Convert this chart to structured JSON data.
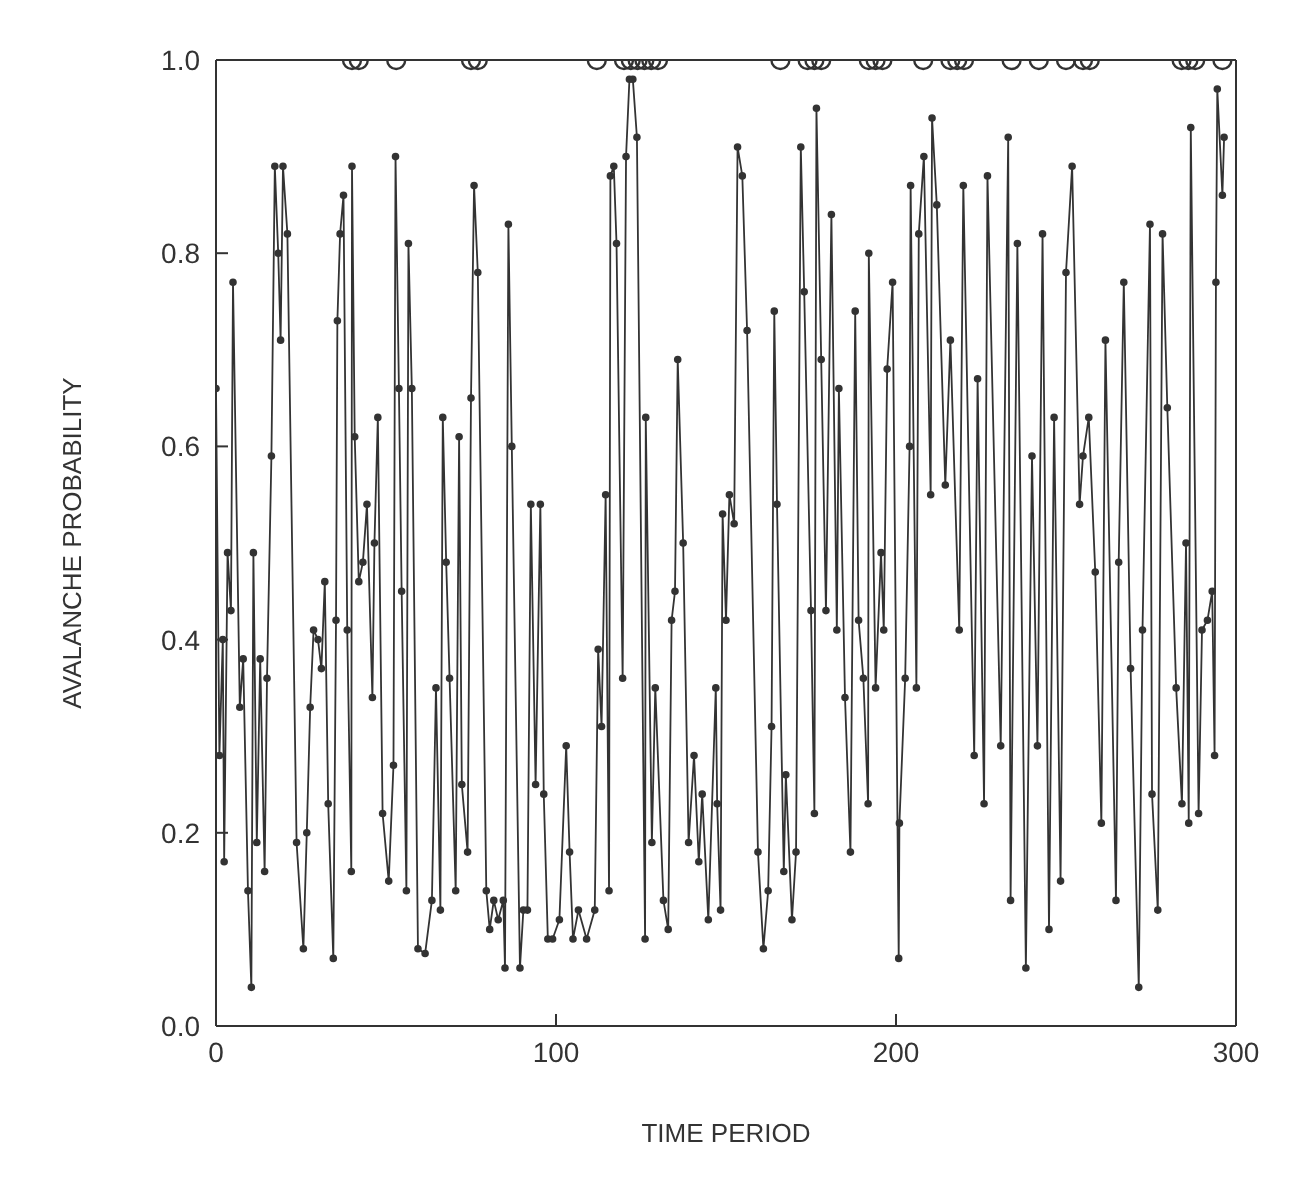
{
  "chart_data": {
    "type": "line",
    "xlabel": "TIME PERIOD",
    "ylabel": "AVALANCHE PROBABILITY",
    "xlim": [
      0,
      300
    ],
    "ylim": [
      0,
      1
    ],
    "xticks": [
      0,
      100,
      200,
      300
    ],
    "yticks": [
      {
        "value": 0,
        "label": "0.0"
      },
      {
        "value": 0.2,
        "label": "0.2"
      },
      {
        "value": 0.4,
        "label": "0.4"
      },
      {
        "value": 0.6,
        "label": "0.6"
      },
      {
        "value": 0.8,
        "label": "0.8"
      },
      {
        "value": 1,
        "label": "1.0"
      }
    ],
    "grid": false,
    "line_style": "solid",
    "series": [
      {
        "color": "#333333",
        "marker": "circle",
        "x": [
          0,
          1,
          2,
          2.4,
          3.4,
          4.4,
          5,
          7,
          8,
          9.4,
          10.4,
          11,
          12,
          13,
          14.3,
          15,
          16.3,
          17.3,
          18.3,
          19,
          19.7,
          21,
          23.7,
          25.7,
          26.7,
          27.7,
          28.7,
          30,
          31,
          32,
          33,
          34.5,
          35.3,
          35.7,
          36.5,
          37.5,
          38.6,
          39.8,
          40,
          40.8,
          42,
          43.2,
          44.4,
          46,
          46.6,
          47.6,
          49,
          50.8,
          52.2,
          52.8,
          53.8,
          54.6,
          56,
          56.6,
          57.6,
          59.4,
          61.5,
          63.5,
          64.7,
          66,
          66.7,
          67.7,
          68.7,
          70.5,
          71.5,
          72.3,
          74,
          75,
          75.9,
          77,
          79.5,
          80.5,
          81.7,
          83,
          84.5,
          85,
          86,
          87,
          89.4,
          90.4,
          91.6,
          92.6,
          94,
          95.4,
          96.4,
          97.6,
          99,
          101,
          103,
          104,
          105,
          106.6,
          109,
          111.4,
          112.4,
          113.4,
          114.6,
          115.6,
          116,
          117,
          117.8,
          119.6,
          120.6,
          121.6,
          122.6,
          123.8,
          126.2,
          126.4,
          128.2,
          129.2,
          131.6,
          133,
          134,
          135,
          135.8,
          137.4,
          139,
          140.6,
          142,
          143,
          144.8,
          147,
          147.4,
          148.4,
          149,
          150,
          151,
          152.4,
          153.4,
          154.8,
          156.2,
          159.4,
          161,
          162.4,
          163.4,
          164.2,
          165,
          167,
          167.6,
          169.4,
          170.6,
          172,
          173,
          175,
          176,
          176.6,
          178,
          179.4,
          181,
          182.6,
          183.2,
          185,
          186.6,
          188,
          189,
          190.4,
          191.8,
          192,
          194,
          195.6,
          196.4,
          197.4,
          199,
          200.8,
          201,
          202.7,
          204,
          204.3,
          206,
          206.7,
          208.2,
          210.2,
          210.6,
          212,
          214.5,
          216,
          218.6,
          219.8,
          223,
          224,
          225.9,
          226.9,
          230.8,
          233,
          233.7,
          235.7,
          238.2,
          240,
          241.6,
          243.1,
          245,
          246.5,
          248.4,
          250,
          251.8,
          254,
          255,
          256.7,
          258.6,
          260.4,
          261.6,
          264.7,
          265.5,
          267,
          269,
          271.4,
          272.5,
          274.7,
          275.3,
          277,
          278.4,
          279.8,
          282.4,
          284.1,
          285.3,
          286.1,
          286.7,
          289,
          290,
          291.6,
          293,
          293.7,
          294.1,
          294.5,
          296,
          296.5
        ],
        "values": [
          0.66,
          0.28,
          0.4,
          0.17,
          0.49,
          0.43,
          0.77,
          0.33,
          0.38,
          0.14,
          0.04,
          0.49,
          0.19,
          0.38,
          0.16,
          0.36,
          0.59,
          0.89,
          0.8,
          0.71,
          0.89,
          0.82,
          0.19,
          0.08,
          0.2,
          0.33,
          0.41,
          0.4,
          0.37,
          0.46,
          0.23,
          0.07,
          0.42,
          0.73,
          0.82,
          0.86,
          0.41,
          0.16,
          0.89,
          0.61,
          0.46,
          0.48,
          0.54,
          0.34,
          0.5,
          0.63,
          0.22,
          0.15,
          0.27,
          0.9,
          0.66,
          0.45,
          0.14,
          0.81,
          0.66,
          0.08,
          0.075,
          0.13,
          0.35,
          0.12,
          0.63,
          0.48,
          0.36,
          0.14,
          0.61,
          0.25,
          0.18,
          0.65,
          0.87,
          0.78,
          0.14,
          0.1,
          0.13,
          0.11,
          0.13,
          0.06,
          0.83,
          0.6,
          0.06,
          0.12,
          0.12,
          0.54,
          0.25,
          0.54,
          0.24,
          0.09,
          0.09,
          0.11,
          0.29,
          0.18,
          0.09,
          0.12,
          0.09,
          0.12,
          0.39,
          0.31,
          0.55,
          0.14,
          0.88,
          0.89,
          0.81,
          0.36,
          0.9,
          0.98,
          0.98,
          0.92,
          0.09,
          0.63,
          0.19,
          0.35,
          0.13,
          0.1,
          0.42,
          0.45,
          0.69,
          0.5,
          0.19,
          0.28,
          0.17,
          0.24,
          0.11,
          0.35,
          0.23,
          0.12,
          0.53,
          0.42,
          0.55,
          0.52,
          0.91,
          0.88,
          0.72,
          0.18,
          0.08,
          0.14,
          0.31,
          0.74,
          0.54,
          0.16,
          0.26,
          0.11,
          0.18,
          0.91,
          0.76,
          0.43,
          0.22,
          0.95,
          0.69,
          0.43,
          0.84,
          0.41,
          0.66,
          0.34,
          0.18,
          0.74,
          0.42,
          0.36,
          0.23,
          0.8,
          0.35,
          0.49,
          0.41,
          0.68,
          0.77,
          0.07,
          0.21,
          0.36,
          0.6,
          0.87,
          0.35,
          0.82,
          0.9,
          0.55,
          0.94,
          0.85,
          0.56,
          0.71,
          0.41,
          0.87,
          0.28,
          0.67,
          0.23,
          0.88,
          0.29,
          0.92,
          0.13,
          0.81,
          0.06,
          0.59,
          0.29,
          0.82,
          0.1,
          0.63,
          0.15,
          0.78,
          0.89,
          0.54,
          0.59,
          0.63,
          0.47,
          0.21,
          0.71,
          0.13,
          0.48,
          0.77,
          0.37,
          0.04,
          0.41,
          0.83,
          0.24,
          0.12,
          0.82,
          0.64,
          0.35,
          0.23,
          0.5,
          0.21,
          0.93,
          0.22,
          0.41,
          0.42,
          0.45,
          0.28,
          0.77,
          0.97,
          0.86,
          0.92
        ]
      },
      {
        "type": "scatter",
        "color": "#333333",
        "marker": "circle",
        "x": [
          40,
          42,
          53,
          75,
          77,
          112,
          120,
          122,
          124,
          126,
          128,
          130,
          166,
          174,
          176,
          178,
          192,
          194,
          196,
          208,
          216,
          218,
          220,
          234,
          242,
          250,
          255,
          257,
          284,
          286,
          288,
          296
        ],
        "values": [
          1,
          1,
          1,
          1,
          1,
          1,
          1,
          1,
          1,
          1,
          1,
          1,
          1,
          1,
          1,
          1,
          1,
          1,
          1,
          1,
          1,
          1,
          1,
          1,
          1,
          1,
          1,
          1,
          1,
          1,
          1,
          1
        ]
      }
    ]
  }
}
